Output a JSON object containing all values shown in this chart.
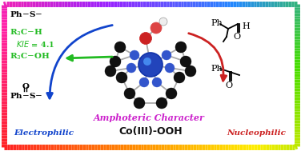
{
  "title": "Co(III)-OOH",
  "subtitle": "Amphoteric Character",
  "left_label": "Electrophilic",
  "right_label": "Nucleophilic",
  "bg_color": "#ffffff",
  "arrow_blue_color": "#1144cc",
  "arrow_green_color": "#22bb22",
  "arrow_red_color": "#cc2222",
  "electrophilic_color": "#1144cc",
  "nucleophilic_color": "#cc2222",
  "amphoteric_color": "#cc22cc",
  "coiii_color": "#111111",
  "green_text_color": "#22bb22",
  "rainbow": [
    "#ff2222",
    "#ff8800",
    "#ffee00",
    "#44dd00",
    "#2288ff",
    "#9922ff",
    "#ff22aa",
    "#ff2222"
  ],
  "bond_color": "#aaaaaa",
  "co_color": "#2244bb",
  "n_color": "#3355cc",
  "o1_color": "#cc2222",
  "o2_color": "#dd4444",
  "h_color": "#eeeeee",
  "c_color": "#111111"
}
